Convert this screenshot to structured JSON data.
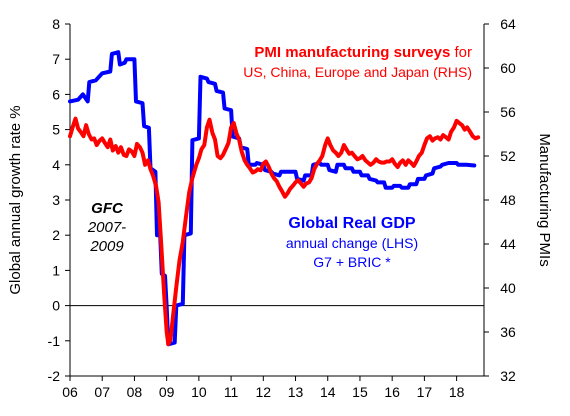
{
  "chart_data": {
    "type": "line",
    "title": "",
    "xlabel": "",
    "ylabel_left": "Global annual growth rate %",
    "ylabel_right": "Manufacturing PMIs",
    "x_range": [
      2006.0,
      2018.85
    ],
    "ylim_left": [
      -2,
      8
    ],
    "ylim_right": [
      32,
      64
    ],
    "yticks_left": [
      "8",
      "7",
      "6",
      "5",
      "4",
      "3",
      "2",
      "1",
      "0",
      "-1",
      "-2"
    ],
    "yticks_right": [
      "64",
      "60",
      "56",
      "52",
      "48",
      "44",
      "40",
      "36",
      "32"
    ],
    "xticks": [
      {
        "label": "06",
        "x": 2006
      },
      {
        "label": "07",
        "x": 2007
      },
      {
        "label": "08",
        "x": 2008
      },
      {
        "label": "09",
        "x": 2009
      },
      {
        "label": "10",
        "x": 2010
      },
      {
        "label": "11",
        "x": 2011
      },
      {
        "label": "12",
        "x": 2012
      },
      {
        "label": "13",
        "x": 2013
      },
      {
        "label": "14",
        "x": 2014
      },
      {
        "label": "15",
        "x": 2015
      },
      {
        "label": "16",
        "x": 2016
      },
      {
        "label": "17",
        "x": 2017
      },
      {
        "label": "18",
        "x": 2018
      }
    ],
    "grid": false,
    "legend": "inline annotations",
    "annotations": {
      "pmi_title_bold": "PMI manufacturing surveys",
      "pmi_title_rest": " for",
      "pmi_line2": "US, China, Europe and Japan (RHS)",
      "gdp_title": "Global Real GDP",
      "gdp_line2": "annual change  (LHS)",
      "gdp_line3": "G7 +  BRIC *",
      "gfc_1": "GFC",
      "gfc_2": "2007-",
      "gfc_3": "2009"
    },
    "series": [
      {
        "key": "gdp",
        "axis": "left",
        "color": "#0000ff",
        "points": [
          [
            2006.0,
            5.8
          ],
          [
            2006.25,
            5.85
          ],
          [
            2006.4,
            6.0
          ],
          [
            2006.55,
            5.8
          ],
          [
            2006.6,
            6.35
          ],
          [
            2006.8,
            6.4
          ],
          [
            2007.0,
            6.6
          ],
          [
            2007.25,
            6.65
          ],
          [
            2007.3,
            7.15
          ],
          [
            2007.5,
            7.2
          ],
          [
            2007.55,
            6.85
          ],
          [
            2007.7,
            6.9
          ],
          [
            2007.75,
            7.0
          ],
          [
            2008.0,
            7.0
          ],
          [
            2008.05,
            5.8
          ],
          [
            2008.25,
            5.75
          ],
          [
            2008.3,
            5.1
          ],
          [
            2008.45,
            5.05
          ],
          [
            2008.5,
            3.9
          ],
          [
            2008.65,
            3.8
          ],
          [
            2008.7,
            2.0
          ],
          [
            2008.8,
            2.0
          ],
          [
            2008.85,
            0.9
          ],
          [
            2008.95,
            0.85
          ],
          [
            2009.0,
            -0.05
          ],
          [
            2009.05,
            -1.1
          ],
          [
            2009.25,
            -1.05
          ],
          [
            2009.3,
            0.0
          ],
          [
            2009.5,
            0.05
          ],
          [
            2009.55,
            2.0
          ],
          [
            2009.75,
            2.05
          ],
          [
            2009.8,
            4.7
          ],
          [
            2010.0,
            4.75
          ],
          [
            2010.05,
            6.5
          ],
          [
            2010.25,
            6.45
          ],
          [
            2010.3,
            6.35
          ],
          [
            2010.5,
            6.3
          ],
          [
            2010.55,
            6.1
          ],
          [
            2010.75,
            6.05
          ],
          [
            2010.8,
            5.6
          ],
          [
            2011.0,
            5.55
          ],
          [
            2011.05,
            4.8
          ],
          [
            2011.25,
            4.75
          ],
          [
            2011.3,
            4.5
          ],
          [
            2011.5,
            4.45
          ],
          [
            2011.55,
            4.0
          ],
          [
            2011.75,
            4.0
          ],
          [
            2011.8,
            4.05
          ],
          [
            2012.0,
            4.0
          ],
          [
            2012.05,
            3.85
          ],
          [
            2012.25,
            3.8
          ],
          [
            2012.3,
            3.75
          ],
          [
            2012.5,
            3.7
          ],
          [
            2012.55,
            3.8
          ],
          [
            2013.0,
            3.8
          ],
          [
            2013.05,
            3.6
          ],
          [
            2013.25,
            3.55
          ],
          [
            2013.3,
            3.7
          ],
          [
            2013.5,
            3.7
          ],
          [
            2013.55,
            4.0
          ],
          [
            2013.75,
            4.05
          ],
          [
            2013.8,
            4.0
          ],
          [
            2014.0,
            4.0
          ],
          [
            2014.05,
            3.85
          ],
          [
            2014.25,
            3.8
          ],
          [
            2014.3,
            4.0
          ],
          [
            2014.5,
            4.0
          ],
          [
            2014.55,
            3.9
          ],
          [
            2014.75,
            3.9
          ],
          [
            2014.8,
            3.8
          ],
          [
            2015.0,
            3.8
          ],
          [
            2015.05,
            3.7
          ],
          [
            2015.25,
            3.7
          ],
          [
            2015.3,
            3.6
          ],
          [
            2015.5,
            3.55
          ],
          [
            2015.55,
            3.5
          ],
          [
            2015.75,
            3.5
          ],
          [
            2015.8,
            3.35
          ],
          [
            2016.0,
            3.35
          ],
          [
            2016.05,
            3.4
          ],
          [
            2016.25,
            3.4
          ],
          [
            2016.3,
            3.35
          ],
          [
            2016.5,
            3.35
          ],
          [
            2016.55,
            3.45
          ],
          [
            2016.75,
            3.45
          ],
          [
            2016.8,
            3.6
          ],
          [
            2017.0,
            3.6
          ],
          [
            2017.05,
            3.7
          ],
          [
            2017.25,
            3.75
          ],
          [
            2017.3,
            3.9
          ],
          [
            2017.5,
            3.95
          ],
          [
            2017.55,
            4.0
          ],
          [
            2017.75,
            4.05
          ],
          [
            2017.8,
            4.05
          ],
          [
            2018.0,
            4.05
          ],
          [
            2018.05,
            4.0
          ],
          [
            2018.25,
            4.0
          ],
          [
            2018.3,
            4.0
          ],
          [
            2018.55,
            3.98
          ]
        ]
      },
      {
        "key": "pmi",
        "axis": "right",
        "color": "#ff0000",
        "points": [
          [
            2006.0,
            53.8
          ],
          [
            2006.08,
            54.6
          ],
          [
            2006.17,
            55.4
          ],
          [
            2006.25,
            54.5
          ],
          [
            2006.33,
            54.2
          ],
          [
            2006.42,
            53.8
          ],
          [
            2006.5,
            54.8
          ],
          [
            2006.58,
            54.0
          ],
          [
            2006.67,
            53.5
          ],
          [
            2006.75,
            53.6
          ],
          [
            2006.83,
            53.0
          ],
          [
            2006.92,
            53.4
          ],
          [
            2007.0,
            53.6
          ],
          [
            2007.08,
            53.2
          ],
          [
            2007.17,
            52.8
          ],
          [
            2007.25,
            53.5
          ],
          [
            2007.33,
            52.5
          ],
          [
            2007.42,
            52.9
          ],
          [
            2007.5,
            52.3
          ],
          [
            2007.58,
            52.8
          ],
          [
            2007.67,
            52.1
          ],
          [
            2007.75,
            52.0
          ],
          [
            2007.83,
            52.6
          ],
          [
            2007.92,
            52.4
          ],
          [
            2008.0,
            52.0
          ],
          [
            2008.08,
            53.1
          ],
          [
            2008.17,
            52.8
          ],
          [
            2008.25,
            52.3
          ],
          [
            2008.33,
            51.2
          ],
          [
            2008.42,
            51.6
          ],
          [
            2008.5,
            50.8
          ],
          [
            2008.58,
            50.2
          ],
          [
            2008.67,
            49.3
          ],
          [
            2008.75,
            47.8
          ],
          [
            2008.83,
            44.0
          ],
          [
            2008.92,
            39.5
          ],
          [
            2009.0,
            36.0
          ],
          [
            2009.05,
            34.9
          ],
          [
            2009.12,
            35.3
          ],
          [
            2009.2,
            37.5
          ],
          [
            2009.3,
            40.1
          ],
          [
            2009.4,
            42.5
          ],
          [
            2009.5,
            44.2
          ],
          [
            2009.6,
            46.5
          ],
          [
            2009.7,
            48.7
          ],
          [
            2009.8,
            50.0
          ],
          [
            2009.92,
            51.2
          ],
          [
            2010.0,
            51.8
          ],
          [
            2010.08,
            52.6
          ],
          [
            2010.17,
            53.0
          ],
          [
            2010.25,
            54.6
          ],
          [
            2010.33,
            55.3
          ],
          [
            2010.42,
            54.1
          ],
          [
            2010.5,
            53.5
          ],
          [
            2010.58,
            52.0
          ],
          [
            2010.67,
            51.8
          ],
          [
            2010.75,
            52.1
          ],
          [
            2010.83,
            52.6
          ],
          [
            2010.92,
            53.2
          ],
          [
            2011.0,
            54.6
          ],
          [
            2011.08,
            55.0
          ],
          [
            2011.17,
            54.0
          ],
          [
            2011.25,
            53.5
          ],
          [
            2011.33,
            52.4
          ],
          [
            2011.42,
            51.6
          ],
          [
            2011.5,
            51.2
          ],
          [
            2011.58,
            50.9
          ],
          [
            2011.67,
            50.5
          ],
          [
            2011.75,
            50.6
          ],
          [
            2011.83,
            50.8
          ],
          [
            2011.92,
            50.7
          ],
          [
            2012.0,
            51.3
          ],
          [
            2012.08,
            51.5
          ],
          [
            2012.17,
            51.0
          ],
          [
            2012.25,
            50.4
          ],
          [
            2012.33,
            50.0
          ],
          [
            2012.42,
            49.7
          ],
          [
            2012.5,
            49.2
          ],
          [
            2012.58,
            48.8
          ],
          [
            2012.67,
            48.3
          ],
          [
            2012.75,
            48.6
          ],
          [
            2012.83,
            49.0
          ],
          [
            2012.92,
            49.3
          ],
          [
            2013.0,
            49.6
          ],
          [
            2013.08,
            49.8
          ],
          [
            2013.17,
            49.5
          ],
          [
            2013.25,
            49.2
          ],
          [
            2013.33,
            49.5
          ],
          [
            2013.42,
            49.6
          ],
          [
            2013.5,
            50.0
          ],
          [
            2013.58,
            50.8
          ],
          [
            2013.67,
            51.3
          ],
          [
            2013.75,
            51.6
          ],
          [
            2013.83,
            52.0
          ],
          [
            2013.92,
            53.0
          ],
          [
            2014.0,
            53.6
          ],
          [
            2014.08,
            53.0
          ],
          [
            2014.17,
            52.5
          ],
          [
            2014.25,
            52.3
          ],
          [
            2014.33,
            52.0
          ],
          [
            2014.42,
            52.3
          ],
          [
            2014.5,
            53.0
          ],
          [
            2014.58,
            52.6
          ],
          [
            2014.67,
            52.2
          ],
          [
            2014.75,
            52.3
          ],
          [
            2014.83,
            52.0
          ],
          [
            2014.92,
            51.7
          ],
          [
            2015.0,
            51.8
          ],
          [
            2015.08,
            52.0
          ],
          [
            2015.17,
            51.6
          ],
          [
            2015.25,
            51.4
          ],
          [
            2015.33,
            51.2
          ],
          [
            2015.42,
            51.4
          ],
          [
            2015.5,
            51.7
          ],
          [
            2015.58,
            51.5
          ],
          [
            2015.67,
            51.4
          ],
          [
            2015.75,
            51.4
          ],
          [
            2015.83,
            51.5
          ],
          [
            2015.92,
            51.5
          ],
          [
            2016.0,
            51.7
          ],
          [
            2016.08,
            51.3
          ],
          [
            2016.17,
            51.0
          ],
          [
            2016.25,
            51.4
          ],
          [
            2016.33,
            51.6
          ],
          [
            2016.42,
            51.2
          ],
          [
            2016.5,
            51.6
          ],
          [
            2016.58,
            51.4
          ],
          [
            2016.67,
            51.1
          ],
          [
            2016.75,
            51.5
          ],
          [
            2016.83,
            52.0
          ],
          [
            2016.92,
            52.3
          ],
          [
            2017.0,
            53.0
          ],
          [
            2017.08,
            53.6
          ],
          [
            2017.17,
            53.8
          ],
          [
            2017.25,
            53.4
          ],
          [
            2017.33,
            53.6
          ],
          [
            2017.42,
            53.7
          ],
          [
            2017.5,
            53.5
          ],
          [
            2017.58,
            53.9
          ],
          [
            2017.67,
            53.7
          ],
          [
            2017.75,
            53.5
          ],
          [
            2017.83,
            54.2
          ],
          [
            2017.92,
            54.6
          ],
          [
            2018.0,
            55.2
          ],
          [
            2018.08,
            55.0
          ],
          [
            2018.17,
            54.8
          ],
          [
            2018.25,
            54.4
          ],
          [
            2018.33,
            54.6
          ],
          [
            2018.42,
            54.2
          ],
          [
            2018.5,
            53.8
          ],
          [
            2018.58,
            53.6
          ],
          [
            2018.67,
            53.7
          ]
        ]
      }
    ]
  }
}
